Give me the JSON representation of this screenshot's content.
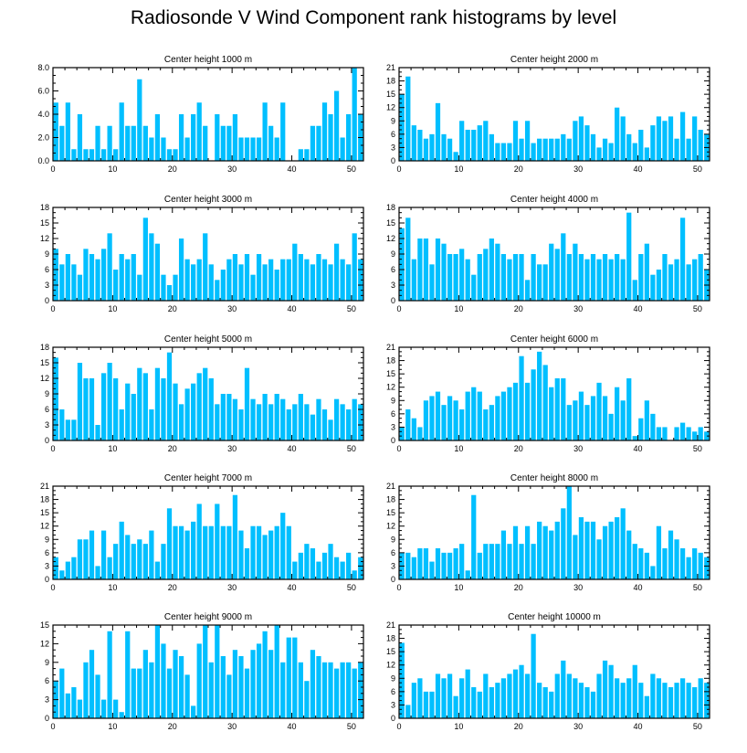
{
  "title": "Radiosonde V Wind Component rank histograms by level",
  "colors": {
    "bar": "#00bfff",
    "axis": "#000000"
  },
  "chart_data": [
    {
      "type": "bar",
      "title": "Center height 1000 m",
      "ylim": [
        0,
        8
      ],
      "yticks": [
        0,
        2,
        4,
        6,
        8
      ],
      "ytick_labels": [
        "0.0",
        "2.0",
        "4.0",
        "6.0",
        "8.0"
      ],
      "xticks": [
        0,
        10,
        20,
        30,
        40,
        50
      ],
      "xlim": [
        0,
        52
      ],
      "values": [
        5,
        3,
        5,
        1,
        4,
        1,
        1,
        3,
        1,
        3,
        1,
        5,
        3,
        3,
        7,
        3,
        2,
        4,
        2,
        1,
        1,
        4,
        2,
        4,
        5,
        3,
        0,
        4,
        3,
        3,
        4,
        2,
        2,
        2,
        2,
        5,
        3,
        2,
        5,
        0,
        0,
        1,
        1,
        3,
        3,
        5,
        4,
        6,
        2,
        4,
        8,
        4
      ]
    },
    {
      "type": "bar",
      "title": "Center height 2000 m",
      "ylim": [
        0,
        21
      ],
      "yticks": [
        0,
        3,
        6,
        9,
        12,
        15,
        18,
        21
      ],
      "ytick_labels": [
        "0",
        "3",
        "6",
        "9",
        "12",
        "15",
        "18",
        "21"
      ],
      "xticks": [
        0,
        10,
        20,
        30,
        40,
        50
      ],
      "xlim": [
        0,
        52
      ],
      "values": [
        15,
        19,
        8,
        7,
        5,
        6,
        13,
        6,
        5,
        2,
        9,
        7,
        7,
        8,
        9,
        6,
        4,
        4,
        4,
        9,
        5,
        9,
        4,
        5,
        5,
        5,
        5,
        6,
        5,
        9,
        10,
        8,
        6,
        3,
        5,
        4,
        12,
        10,
        6,
        4,
        7,
        3,
        8,
        10,
        9,
        10,
        5,
        11,
        5,
        10,
        7,
        6
      ]
    },
    {
      "type": "bar",
      "title": "Center height 3000 m",
      "ylim": [
        0,
        18
      ],
      "yticks": [
        0,
        3,
        6,
        9,
        12,
        15,
        18
      ],
      "ytick_labels": [
        "0",
        "3",
        "6",
        "9",
        "12",
        "15",
        "18"
      ],
      "xticks": [
        0,
        10,
        20,
        30,
        40,
        50
      ],
      "xlim": [
        0,
        52
      ],
      "values": [
        10,
        7,
        9,
        7,
        5,
        10,
        9,
        8,
        10,
        13,
        6,
        9,
        8,
        9,
        5,
        16,
        13,
        11,
        5,
        3,
        5,
        12,
        8,
        7,
        8,
        13,
        7,
        4,
        6,
        8,
        9,
        7,
        9,
        5,
        9,
        7,
        8,
        6,
        8,
        8,
        11,
        9,
        8,
        7,
        9,
        8,
        7,
        11,
        8,
        7,
        13,
        8
      ]
    },
    {
      "type": "bar",
      "title": "Center height 4000 m",
      "ylim": [
        0,
        18
      ],
      "yticks": [
        0,
        3,
        6,
        9,
        12,
        15,
        18
      ],
      "ytick_labels": [
        "0",
        "3",
        "6",
        "9",
        "12",
        "15",
        "18"
      ],
      "xticks": [
        0,
        10,
        20,
        30,
        40,
        50
      ],
      "xlim": [
        0,
        52
      ],
      "values": [
        14,
        16,
        8,
        12,
        12,
        7,
        12,
        11,
        9,
        9,
        10,
        8,
        5,
        9,
        10,
        12,
        11,
        9,
        8,
        9,
        9,
        4,
        9,
        7,
        7,
        11,
        10,
        13,
        9,
        11,
        9,
        8,
        9,
        8,
        9,
        8,
        9,
        8,
        17,
        4,
        9,
        11,
        5,
        6,
        9,
        7,
        8,
        16,
        7,
        8,
        9,
        6
      ]
    },
    {
      "type": "bar",
      "title": "Center height 5000 m",
      "ylim": [
        0,
        18
      ],
      "yticks": [
        0,
        3,
        6,
        9,
        12,
        15,
        18
      ],
      "ytick_labels": [
        "0",
        "3",
        "6",
        "9",
        "12",
        "15",
        "18"
      ],
      "xticks": [
        0,
        10,
        20,
        30,
        40,
        50
      ],
      "xlim": [
        0,
        52
      ],
      "values": [
        16,
        6,
        4,
        4,
        15,
        12,
        12,
        3,
        13,
        15,
        12,
        6,
        11,
        9,
        14,
        13,
        6,
        14,
        12,
        17,
        11,
        7,
        10,
        11,
        13,
        14,
        12,
        7,
        9,
        9,
        8,
        6,
        14,
        8,
        7,
        9,
        7,
        9,
        8,
        6,
        7,
        9,
        7,
        5,
        8,
        6,
        4,
        8,
        7,
        6,
        8,
        7
      ]
    },
    {
      "type": "bar",
      "title": "Center height 6000 m",
      "ylim": [
        0,
        21
      ],
      "yticks": [
        0,
        3,
        6,
        9,
        12,
        15,
        18,
        21
      ],
      "ytick_labels": [
        "0",
        "3",
        "6",
        "9",
        "12",
        "15",
        "18",
        "21"
      ],
      "xticks": [
        0,
        10,
        20,
        30,
        40,
        50
      ],
      "xlim": [
        0,
        52
      ],
      "values": [
        3,
        7,
        5,
        3,
        9,
        10,
        11,
        8,
        10,
        9,
        7,
        11,
        12,
        11,
        7,
        8,
        10,
        11,
        12,
        13,
        19,
        13,
        16,
        20,
        17,
        12,
        14,
        14,
        8,
        9,
        11,
        8,
        10,
        13,
        10,
        6,
        12,
        9,
        14,
        1,
        5,
        9,
        6,
        3,
        3,
        0,
        3,
        4,
        3,
        2,
        3,
        2
      ]
    },
    {
      "type": "bar",
      "title": "Center height 7000 m",
      "ylim": [
        0,
        21
      ],
      "yticks": [
        0,
        3,
        6,
        9,
        12,
        15,
        18,
        21
      ],
      "ytick_labels": [
        "0",
        "3",
        "6",
        "9",
        "12",
        "15",
        "18",
        "21"
      ],
      "xticks": [
        0,
        10,
        20,
        30,
        40,
        50
      ],
      "xlim": [
        0,
        52
      ],
      "values": [
        5,
        2,
        4,
        5,
        9,
        9,
        11,
        3,
        11,
        5,
        8,
        13,
        10,
        8,
        9,
        8,
        11,
        4,
        8,
        16,
        12,
        12,
        11,
        13,
        17,
        12,
        12,
        17,
        12,
        12,
        19,
        11,
        7,
        12,
        12,
        10,
        11,
        12,
        15,
        12,
        4,
        6,
        8,
        7,
        4,
        6,
        8,
        5,
        4,
        6,
        2,
        5
      ]
    },
    {
      "type": "bar",
      "title": "Center height 8000 m",
      "ylim": [
        0,
        21
      ],
      "yticks": [
        0,
        3,
        6,
        9,
        12,
        15,
        18,
        21
      ],
      "ytick_labels": [
        "0",
        "3",
        "6",
        "9",
        "12",
        "15",
        "18",
        "21"
      ],
      "xticks": [
        0,
        10,
        20,
        30,
        40,
        50
      ],
      "xlim": [
        0,
        52
      ],
      "values": [
        6,
        6,
        5,
        7,
        7,
        4,
        7,
        6,
        6,
        7,
        8,
        2,
        19,
        6,
        8,
        8,
        8,
        11,
        8,
        12,
        8,
        12,
        8,
        13,
        12,
        11,
        13,
        16,
        21,
        10,
        14,
        13,
        13,
        9,
        12,
        13,
        14,
        16,
        11,
        8,
        7,
        6,
        3,
        12,
        7,
        11,
        9,
        7,
        5,
        7,
        6,
        5
      ]
    },
    {
      "type": "bar",
      "title": "Center height 9000 m",
      "ylim": [
        0,
        15
      ],
      "yticks": [
        0,
        3,
        6,
        9,
        12,
        15
      ],
      "ytick_labels": [
        "0",
        "3",
        "6",
        "9",
        "12",
        "15"
      ],
      "xticks": [
        0,
        10,
        20,
        30,
        40,
        50
      ],
      "xlim": [
        0,
        52
      ],
      "values": [
        6,
        8,
        4,
        5,
        3,
        9,
        11,
        7,
        3,
        14,
        3,
        1,
        14,
        8,
        8,
        11,
        9,
        15,
        12,
        8,
        11,
        10,
        7,
        2,
        12,
        15,
        9,
        15,
        10,
        7,
        11,
        10,
        8,
        11,
        12,
        14,
        11,
        15,
        9,
        13,
        13,
        9,
        6,
        11,
        10,
        9,
        9,
        8,
        9,
        9,
        8,
        9
      ]
    },
    {
      "type": "bar",
      "title": "Center height 10000 m",
      "ylim": [
        0,
        21
      ],
      "yticks": [
        0,
        3,
        6,
        9,
        12,
        15,
        18,
        21
      ],
      "ytick_labels": [
        "0",
        "3",
        "6",
        "9",
        "12",
        "15",
        "18",
        "21"
      ],
      "xticks": [
        0,
        10,
        20,
        30,
        40,
        50
      ],
      "xlim": [
        0,
        52
      ],
      "values": [
        17,
        3,
        8,
        9,
        6,
        6,
        10,
        9,
        10,
        5,
        9,
        11,
        7,
        6,
        10,
        7,
        8,
        9,
        10,
        11,
        12,
        10,
        19,
        8,
        7,
        6,
        10,
        13,
        10,
        9,
        8,
        7,
        6,
        10,
        13,
        12,
        9,
        8,
        9,
        12,
        8,
        5,
        10,
        9,
        8,
        7,
        8,
        9,
        8,
        7,
        9,
        8
      ]
    }
  ]
}
